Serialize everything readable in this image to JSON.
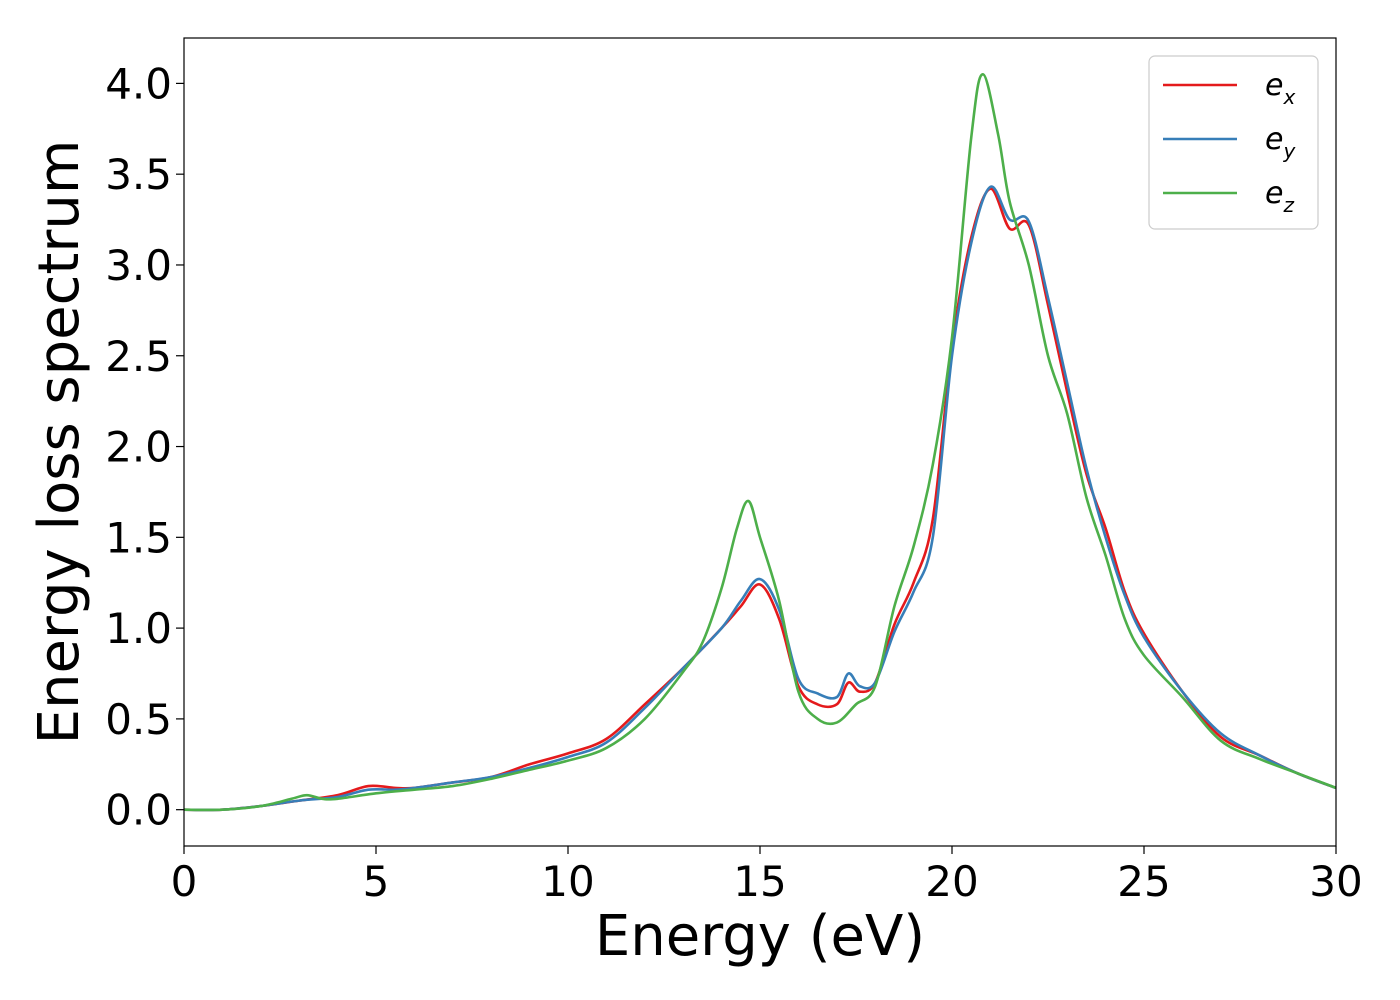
{
  "chart_data": {
    "type": "line",
    "title": "",
    "xlabel": "Energy (eV)",
    "ylabel": "Energy loss spectrum",
    "xlim": [
      0,
      30
    ],
    "ylim": [
      -0.2,
      4.25
    ],
    "xticks": [
      0,
      5,
      10,
      15,
      20,
      25,
      30
    ],
    "xtick_labels": [
      "0",
      "5",
      "10",
      "15",
      "20",
      "25",
      "30"
    ],
    "yticks": [
      0.0,
      0.5,
      1.0,
      1.5,
      2.0,
      2.5,
      3.0,
      3.5,
      4.0
    ],
    "ytick_labels": [
      "0.0",
      "0.5",
      "1.0",
      "1.5",
      "2.0",
      "2.5",
      "3.0",
      "3.5",
      "4.0"
    ],
    "grid": false,
    "legend_position": "top-right",
    "series": [
      {
        "name": "e_x",
        "label_base": "e",
        "label_sub": "x",
        "color": "#e41a1c",
        "x": [
          0,
          1,
          2,
          3,
          4,
          4.8,
          5.5,
          6,
          7,
          8,
          9,
          10,
          11,
          12,
          13,
          14,
          14.5,
          15,
          15.5,
          16,
          16.5,
          17,
          17.3,
          17.6,
          18,
          18.5,
          19,
          19.5,
          20,
          20.5,
          21,
          21.5,
          22,
          22.5,
          23,
          23.5,
          24,
          24.5,
          25,
          26,
          27,
          28,
          29,
          30
        ],
        "y": [
          0.0,
          0.0,
          0.02,
          0.05,
          0.08,
          0.13,
          0.12,
          0.12,
          0.15,
          0.18,
          0.25,
          0.31,
          0.39,
          0.58,
          0.78,
          1.0,
          1.12,
          1.24,
          1.05,
          0.68,
          0.58,
          0.58,
          0.7,
          0.65,
          0.7,
          1.02,
          1.25,
          1.6,
          2.55,
          3.15,
          3.42,
          3.2,
          3.22,
          2.78,
          2.3,
          1.85,
          1.55,
          1.2,
          0.97,
          0.65,
          0.4,
          0.3,
          0.2,
          0.12
        ]
      },
      {
        "name": "e_y",
        "label_base": "e",
        "label_sub": "y",
        "color": "#377eb8",
        "x": [
          0,
          1,
          2,
          3,
          4,
          4.8,
          5.5,
          6,
          7,
          8,
          9,
          10,
          11,
          12,
          13,
          14,
          14.5,
          15,
          15.5,
          16,
          16.5,
          17,
          17.3,
          17.6,
          18,
          18.5,
          19,
          19.5,
          20,
          20.5,
          21,
          21.5,
          22,
          22.5,
          23,
          23.5,
          24,
          24.5,
          25,
          26,
          27,
          28,
          29,
          30
        ],
        "y": [
          0.0,
          0.0,
          0.02,
          0.05,
          0.07,
          0.11,
          0.11,
          0.12,
          0.15,
          0.18,
          0.23,
          0.29,
          0.37,
          0.56,
          0.78,
          1.0,
          1.15,
          1.27,
          1.1,
          0.72,
          0.64,
          0.62,
          0.75,
          0.68,
          0.7,
          0.98,
          1.2,
          1.5,
          2.5,
          3.12,
          3.43,
          3.25,
          3.24,
          2.82,
          2.35,
          1.88,
          1.5,
          1.18,
          0.95,
          0.65,
          0.42,
          0.3,
          0.2,
          0.12
        ]
      },
      {
        "name": "e_z",
        "label_base": "e",
        "label_sub": "z",
        "color": "#4daf4a",
        "x": [
          0,
          1,
          2,
          2.8,
          3.2,
          3.6,
          4,
          5,
          6,
          7,
          8,
          9,
          10,
          11,
          12,
          13,
          13.5,
          14,
          14.4,
          14.7,
          15,
          15.5,
          16,
          16.5,
          17,
          17.5,
          18,
          18.5,
          19,
          19.5,
          20,
          20.5,
          20.8,
          21.2,
          21.5,
          22,
          22.5,
          23,
          23.5,
          24,
          24.5,
          25,
          26,
          27,
          28,
          29,
          30
        ],
        "y": [
          0.0,
          0.0,
          0.02,
          0.06,
          0.08,
          0.06,
          0.06,
          0.09,
          0.11,
          0.13,
          0.17,
          0.22,
          0.27,
          0.34,
          0.5,
          0.76,
          0.92,
          1.22,
          1.55,
          1.7,
          1.5,
          1.15,
          0.65,
          0.5,
          0.48,
          0.58,
          0.68,
          1.12,
          1.45,
          1.9,
          2.6,
          3.7,
          4.05,
          3.72,
          3.35,
          3.0,
          2.5,
          2.18,
          1.72,
          1.4,
          1.05,
          0.85,
          0.62,
          0.38,
          0.28,
          0.2,
          0.12
        ]
      }
    ]
  }
}
